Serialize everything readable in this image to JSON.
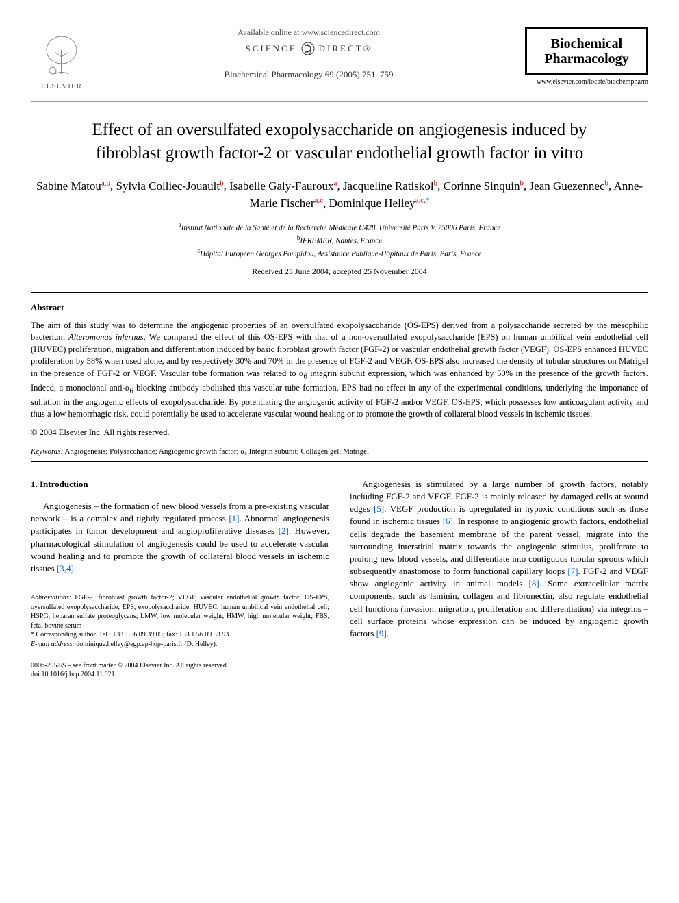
{
  "header": {
    "available_text": "Available online at www.sciencedirect.com",
    "sciencedirect": {
      "left": "SCIENCE",
      "right": "DIRECT®"
    },
    "journal_ref": "Biochemical Pharmacology 69 (2005) 751–759",
    "elsevier_label": "ELSEVIER",
    "journal_box_line1": "Biochemical",
    "journal_box_line2": "Pharmacology",
    "journal_url": "www.elsevier.com/locate/biochempharm"
  },
  "title": "Effect of an oversulfated exopolysaccharide on angiogenesis induced by fibroblast growth factor-2 or vascular endothelial growth factor in vitro",
  "authors_html": "Sabine Matou<sup>a,b</sup>, Sylvia Colliec-Jouault<sup>b</sup>, Isabelle Galy-Fauroux<sup>a</sup>, Jacqueline Ratiskol<sup>b</sup>, Corinne Sinquin<sup>b</sup>, Jean Guezennec<sup>b</sup>, Anne-Marie Fischer<sup>a,c</sup>, Dominique Helley<sup>a,c,</sup><sup class=\"star\">*</sup>",
  "affiliations": {
    "a": "Institut Nationale de la Santé et de la Recherche Médicale U428, Université Paris V, 75006 Paris, France",
    "b": "IFREMER, Nantes, France",
    "c": "Hôpital Européen Georges Pompidou, Assistance Publique-Hôpitaux de Paris, Paris, France"
  },
  "received": "Received 25 June 2004; accepted 25 November 2004",
  "abstract": {
    "heading": "Abstract",
    "body_html": "The aim of this study was to determine the angiogenic properties of an oversulfated exopolysaccharide (OS-EPS) derived from a polysaccharide secreted by the mesophilic bacterium <em>Alteromonas infernus</em>. We compared the effect of this OS-EPS with that of a non-oversulfated exopolysaccharide (EPS) on human umbilical vein endothelial cell (HUVEC) proliferation, migration and differentiation induced by basic fibroblast growth factor (FGF-2) or vascular endothelial growth factor (VEGF). OS-EPS enhanced HUVEC proliferation by 58% when used alone, and by respectively 30% and 70% in the presence of FGF-2 and VEGF. OS-EPS also increased the density of tubular structures on Matrigel in the presence of FGF-2 or VEGF. Vascular tube formation was related to α<sub>6</sub> integrin subunit expression, which was enhanced by 50% in the presence of the growth factors. Indeed, a monoclonal anti-α<sub>6</sub> blocking antibody abolished this vascular tube formation. EPS had no effect in any of the experimental conditions, underlying the importance of sulfation in the angiogenic effects of exopolysaccharide. By potentiating the angiogenic activity of FGF-2 and/or VEGF, OS-EPS, which possesses low anticoagulant activity and thus a low hemorrhagic risk, could potentially be used to accelerate vascular wound healing or to promote the growth of collateral blood vessels in ischemic tissues.",
    "copyright": "© 2004 Elsevier Inc. All rights reserved."
  },
  "keywords": {
    "label": "Keywords:",
    "text": "Angiogenesis; Polysaccharide; Angiogenic growth factor; α₆ Integrin subunit; Collagen gel; Matrigel"
  },
  "intro": {
    "heading": "1. Introduction",
    "para1_html": "Angiogenesis – the formation of new blood vessels from a pre-existing vascular network – is a complex and tightly regulated process <span class=\"ref-link\">[1]</span>. Abnormal angiogenesis participates in tumor development and angioproliferative diseases <span class=\"ref-link\">[2]</span>. However, pharmacological stimulation of angiogenesis could be used to accelerate vascular wound healing and to promote the growth of collateral blood vessels in ischemic tissues <span class=\"ref-link\">[3,4]</span>.",
    "para2_html": "Angiogenesis is stimulated by a large number of growth factors, notably including FGF-2 and VEGF. FGF-2 is mainly released by damaged cells at wound edges <span class=\"ref-link\">[5]</span>. VEGF production is upregulated in hypoxic conditions such as those found in ischemic tissues <span class=\"ref-link\">[6]</span>. In response to angiogenic growth factors, endothelial cells degrade the basement membrane of the parent vessel, migrate into the surrounding interstitial matrix towards the angiogenic stimulus, proliferate to prolong new blood vessels, and differentiate into contiguous tubular sprouts which subsequently anastomose to form functional capillary loops <span class=\"ref-link\">[7]</span>. FGF-2 and VEGF show angiogenic activity in animal models <span class=\"ref-link\">[8]</span>. Some extracellular matrix components, such as laminin, collagen and fibronectin, also regulate endothelial cell functions (invasion, migration, proliferation and differentiation) via integrins – cell surface proteins whose expression can be induced by angiogenic growth factors <span class=\"ref-link\">[9]</span>."
  },
  "footnotes": {
    "abbrev_label": "Abbreviations:",
    "abbrev_text": "FGF-2, fibroblast growth factor-2; VEGF, vascular endothelial growth factor; OS-EPS, oversulfated exopolysaccharide; EPS, exopolysaccharide; HUVEC, human umbilical vein endothelial cell; HSPG, heparan sulfate proteoglycans; LMW, low molecular weight; HMW, high molecular weight; FBS, fetal bovine serum",
    "corresponding": "* Corresponding author. Tel.: +33 1 56 09 39 05; fax: +33 1 56 09 33 93.",
    "email_label": "E-mail address:",
    "email": "dominique.helley@egp.ap-hop-paris.fr (D. Helley)."
  },
  "footer": {
    "copyright": "0006-2952/$ – see front matter © 2004 Elsevier Inc. All rights reserved.",
    "doi": "doi:10.1016/j.bcp.2004.11.021"
  },
  "colors": {
    "ref_link": "#0066cc",
    "sup_color": "#b00000",
    "text": "#000000",
    "background": "#ffffff"
  }
}
